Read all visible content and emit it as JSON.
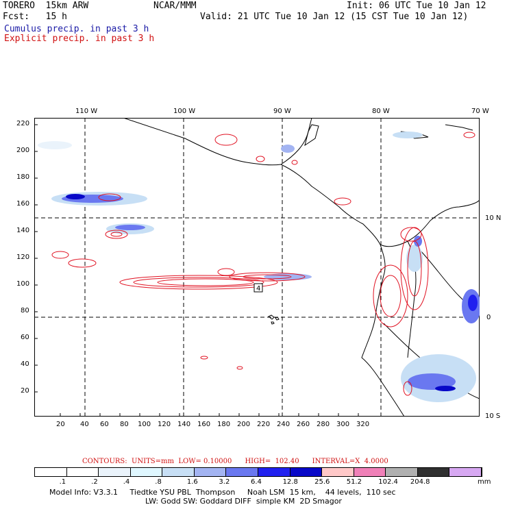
{
  "header": {
    "model": "TORERO  15km ARW",
    "org": "NCAR/MMM",
    "init": "Init: 06 UTC Tue 10 Jan 12",
    "fcst": "Fcst:   15 h",
    "valid": "Valid: 21 UTC Tue 10 Jan 12 (15 CST Tue 10 Jan 12)",
    "cumulus_label": "Cumulus precip. in past 3 h",
    "explicit_label": "Explicit precip. in past 3 h"
  },
  "map": {
    "lon_labels": [
      "110 W",
      "100 W",
      "90 W",
      "80 W",
      "70 W"
    ],
    "lat_labels": [
      "10 N",
      "0",
      "10 S"
    ],
    "x_ticks": [
      "20",
      "40",
      "60",
      "80",
      "100",
      "120",
      "140",
      "160",
      "180",
      "200",
      "220",
      "240",
      "260",
      "280",
      "300",
      "320"
    ],
    "y_ticks": [
      "220",
      "200",
      "180",
      "160",
      "140",
      "120",
      "100",
      "80",
      "60",
      "40",
      "20"
    ],
    "contour_label": "4"
  },
  "contour_info": "CONTOURS:  UNITS=mm  LOW= 0.10000      HIGH=  102.40      INTERVAL=X  4.0000",
  "legend": {
    "labels": [
      ".1",
      ".2",
      ".4",
      ".8",
      "1.6",
      "3.2",
      "6.4",
      "12.8",
      "25.6",
      "51.2",
      "102.4",
      "204.8"
    ],
    "unit": "mm",
    "colors": [
      "#ffffff",
      "#ffffff",
      "#eaf3fb",
      "#dff7ff",
      "#c7dff5",
      "#a3b4f2",
      "#6a78f0",
      "#2020ef",
      "#0808c8",
      "#ffc8c8",
      "#f080b8",
      "#b0b0b0",
      "#303030",
      "#d7a8f2"
    ]
  },
  "footer": {
    "line1": "Model Info: V3.3.1     Tiedtke YSU PBL  Thompson     Noah LSM  15 km,    44 levels,  110 sec",
    "line2": "LW: Godd SW: Goddard DIFF  simple KM  2D Smagor"
  }
}
